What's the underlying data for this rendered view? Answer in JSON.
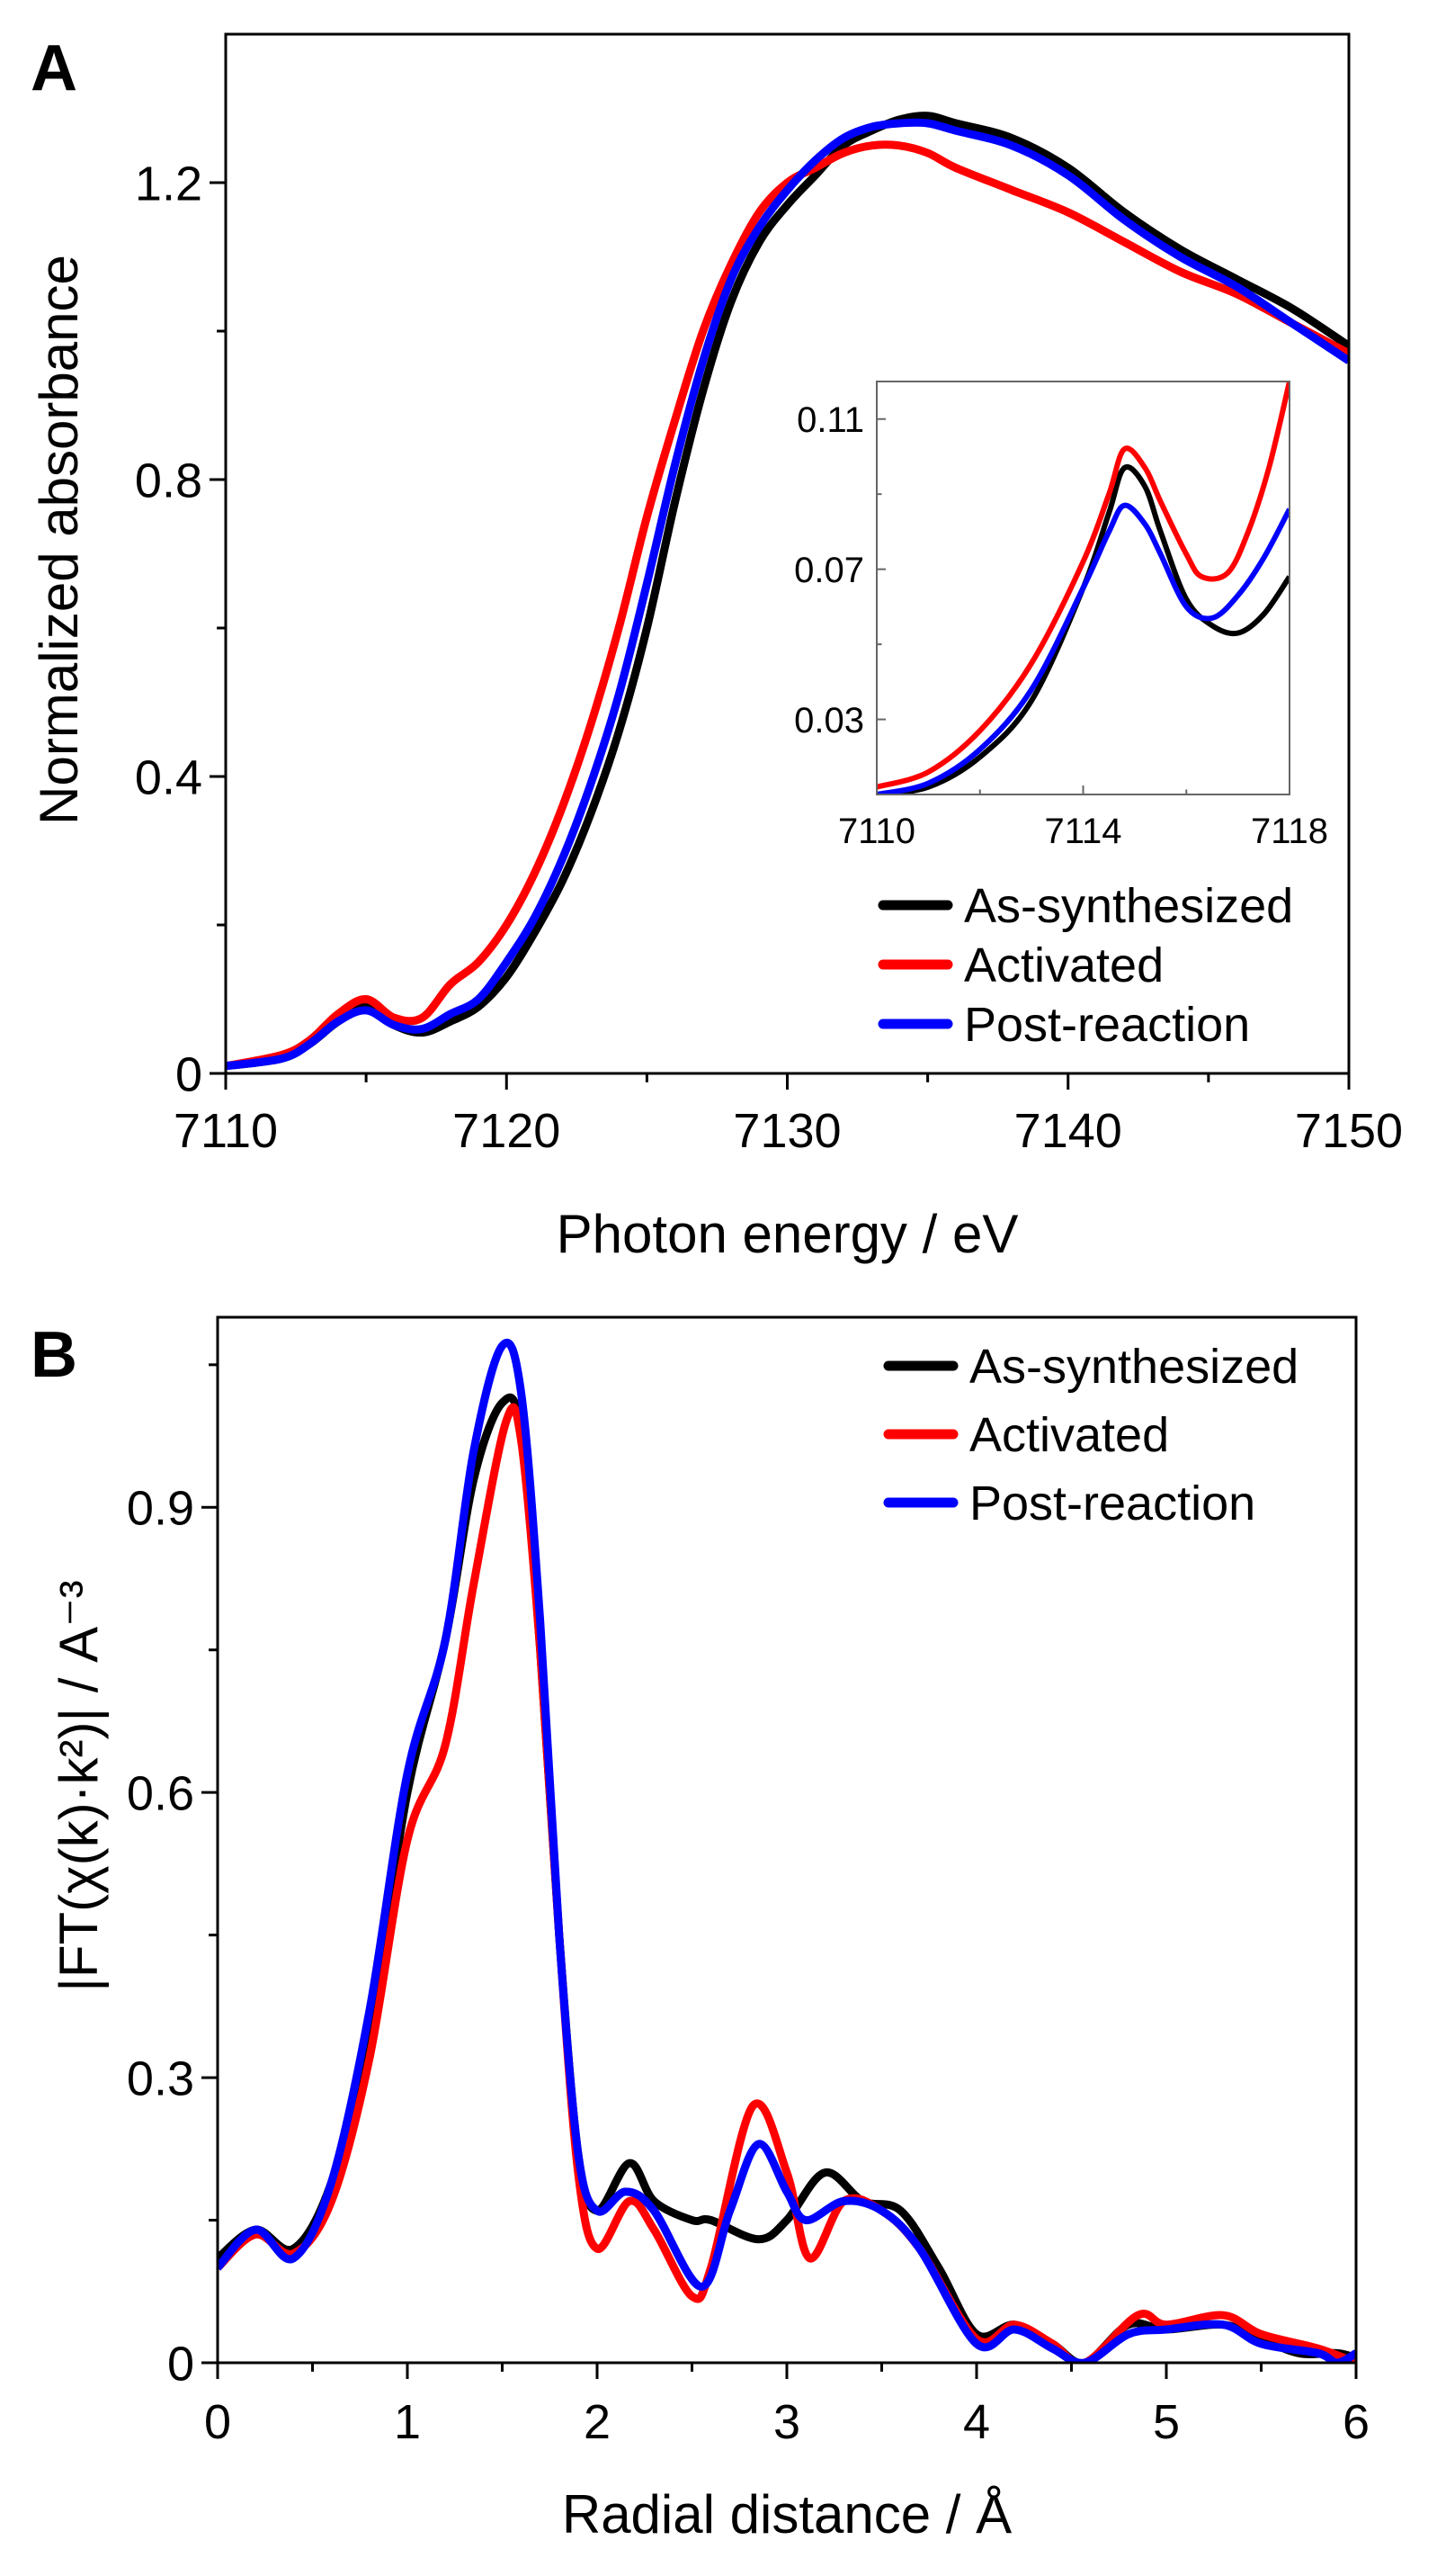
{
  "colors": {
    "As-synthesized": "#000000",
    "Activated": "#ff0000",
    "Post-reaction": "#0000ff"
  },
  "chart_data": [
    {
      "panel": "A",
      "type": "line",
      "title": "",
      "xlabel": "Photon energy / eV",
      "ylabel": "Normalized absorbance",
      "xlim": [
        7110,
        7150
      ],
      "ylim": [
        0,
        1.4
      ],
      "xticks": [
        7110,
        7120,
        7130,
        7140,
        7150
      ],
      "yticks": [
        0,
        0.4,
        0.8,
        1.2
      ],
      "xtick_labels": [
        "7110",
        "7120",
        "7130",
        "7140",
        "7150"
      ],
      "ytick_labels": [
        "0",
        "0.4",
        "0.8",
        "1.2"
      ],
      "legend": "bottom-right",
      "grid": false,
      "series": [
        {
          "name": "As-synthesized",
          "x": [
            7110,
            7112,
            7113,
            7114,
            7115,
            7116,
            7117,
            7118,
            7119,
            7120,
            7121,
            7122,
            7123,
            7124,
            7125,
            7126,
            7127,
            7128,
            7129,
            7130,
            7131,
            7132,
            7133,
            7134,
            7135,
            7136,
            7138,
            7140,
            7142,
            7144,
            7146,
            7148,
            7150
          ],
          "y": [
            0.01,
            0.02,
            0.04,
            0.07,
            0.09,
            0.065,
            0.055,
            0.07,
            0.09,
            0.13,
            0.19,
            0.26,
            0.35,
            0.46,
            0.6,
            0.77,
            0.92,
            1.04,
            1.12,
            1.17,
            1.21,
            1.25,
            1.27,
            1.285,
            1.29,
            1.28,
            1.26,
            1.22,
            1.16,
            1.11,
            1.07,
            1.03,
            0.98
          ]
        },
        {
          "name": "Activated",
          "x": [
            7110,
            7112,
            7113,
            7114,
            7115,
            7116,
            7117,
            7118,
            7119,
            7120,
            7121,
            7122,
            7123,
            7124,
            7125,
            7126,
            7127,
            7128,
            7129,
            7130,
            7131,
            7132,
            7133,
            7134,
            7135,
            7136,
            7138,
            7140,
            7142,
            7144,
            7146,
            7148,
            7150
          ],
          "y": [
            0.01,
            0.025,
            0.045,
            0.08,
            0.1,
            0.075,
            0.075,
            0.12,
            0.15,
            0.2,
            0.27,
            0.36,
            0.47,
            0.6,
            0.75,
            0.88,
            1.0,
            1.09,
            1.16,
            1.2,
            1.22,
            1.24,
            1.25,
            1.25,
            1.24,
            1.22,
            1.19,
            1.16,
            1.12,
            1.08,
            1.05,
            1.01,
            0.97
          ]
        },
        {
          "name": "Post-reaction",
          "x": [
            7110,
            7112,
            7113,
            7114,
            7115,
            7116,
            7117,
            7118,
            7119,
            7120,
            7121,
            7122,
            7123,
            7124,
            7125,
            7126,
            7127,
            7128,
            7129,
            7130,
            7131,
            7132,
            7133,
            7134,
            7135,
            7136,
            7138,
            7140,
            7142,
            7144,
            7146,
            7148,
            7150
          ],
          "y": [
            0.01,
            0.02,
            0.04,
            0.07,
            0.085,
            0.065,
            0.06,
            0.08,
            0.1,
            0.15,
            0.21,
            0.29,
            0.39,
            0.51,
            0.66,
            0.82,
            0.96,
            1.07,
            1.14,
            1.19,
            1.23,
            1.26,
            1.275,
            1.28,
            1.28,
            1.27,
            1.25,
            1.21,
            1.15,
            1.1,
            1.06,
            1.01,
            0.96
          ]
        }
      ],
      "inset": {
        "type": "line",
        "xlim": [
          7110,
          7118
        ],
        "ylim": [
          0.01,
          0.12
        ],
        "xticks": [
          7110,
          7114,
          7118
        ],
        "yticks": [
          0.03,
          0.07,
          0.11
        ],
        "xtick_labels": [
          "7110",
          "7114",
          "7118"
        ],
        "ytick_labels": [
          "0.03",
          "0.07",
          "0.11"
        ],
        "series": [
          {
            "name": "As-synthesized",
            "x": [
              7110,
              7111,
              7112,
              7113,
              7114,
              7114.5,
              7114.8,
              7115.2,
              7115.5,
              7116,
              7116.5,
              7117,
              7117.5,
              7118
            ],
            "y": [
              0.01,
              0.012,
              0.02,
              0.035,
              0.065,
              0.085,
              0.097,
              0.092,
              0.08,
              0.062,
              0.055,
              0.053,
              0.058,
              0.068
            ]
          },
          {
            "name": "Activated",
            "x": [
              7110,
              7111,
              7112,
              7113,
              7114,
              7114.5,
              7114.8,
              7115.2,
              7115.5,
              7116,
              7116.3,
              7116.8,
              7117.2,
              7117.6,
              7118
            ],
            "y": [
              0.012,
              0.016,
              0.027,
              0.045,
              0.072,
              0.09,
              0.102,
              0.097,
              0.088,
              0.074,
              0.068,
              0.069,
              0.08,
              0.097,
              0.12
            ]
          },
          {
            "name": "Post-reaction",
            "x": [
              7110,
              7111,
              7112,
              7113,
              7114,
              7114.5,
              7114.8,
              7115.2,
              7115.5,
              7116,
              7116.5,
              7117,
              7117.5,
              7118
            ],
            "y": [
              0.01,
              0.013,
              0.022,
              0.038,
              0.065,
              0.08,
              0.087,
              0.082,
              0.074,
              0.06,
              0.057,
              0.063,
              0.073,
              0.086
            ]
          }
        ]
      }
    },
    {
      "panel": "B",
      "type": "line",
      "title": "",
      "xlabel": "Radial distance / Å",
      "ylabel": "|FT(χ(k)·k²)| / A⁻³",
      "xlim": [
        0,
        6
      ],
      "ylim": [
        0,
        1.1
      ],
      "xticks": [
        0,
        1,
        2,
        3,
        4,
        5,
        6
      ],
      "yticks": [
        0,
        0.3,
        0.6,
        0.9
      ],
      "xtick_labels": [
        "0",
        "1",
        "2",
        "3",
        "4",
        "5",
        "6"
      ],
      "ytick_labels": [
        "0",
        "0.3",
        "0.6",
        "0.9"
      ],
      "legend": "top-right",
      "grid": false,
      "series": [
        {
          "name": "As-synthesized",
          "x": [
            0,
            0.2,
            0.4,
            0.6,
            0.8,
            1.0,
            1.2,
            1.35,
            1.5,
            1.6,
            1.7,
            1.8,
            1.9,
            2.0,
            2.17,
            2.3,
            2.5,
            2.6,
            2.85,
            3.0,
            3.2,
            3.4,
            3.6,
            3.8,
            4.0,
            4.2,
            4.4,
            4.57,
            4.8,
            5.0,
            5.3,
            5.5,
            5.7,
            5.9,
            6.0
          ],
          "y": [
            0.11,
            0.14,
            0.12,
            0.19,
            0.35,
            0.6,
            0.76,
            0.93,
            1.01,
            0.98,
            0.75,
            0.45,
            0.22,
            0.16,
            0.21,
            0.17,
            0.15,
            0.15,
            0.13,
            0.15,
            0.2,
            0.17,
            0.16,
            0.1,
            0.03,
            0.04,
            0.02,
            0.0,
            0.04,
            0.035,
            0.04,
            0.025,
            0.01,
            0.01,
            0.005
          ]
        },
        {
          "name": "Activated",
          "x": [
            0,
            0.2,
            0.4,
            0.6,
            0.8,
            1.0,
            1.2,
            1.35,
            1.52,
            1.6,
            1.7,
            1.8,
            1.9,
            2.0,
            2.17,
            2.3,
            2.5,
            2.6,
            2.82,
            3.0,
            3.12,
            3.3,
            3.5,
            3.7,
            4.0,
            4.2,
            4.4,
            4.57,
            4.85,
            5.0,
            5.3,
            5.5,
            5.8,
            6.0
          ],
          "y": [
            0.1,
            0.135,
            0.115,
            0.17,
            0.32,
            0.55,
            0.65,
            0.82,
            0.99,
            0.97,
            0.75,
            0.45,
            0.2,
            0.12,
            0.17,
            0.14,
            0.07,
            0.1,
            0.27,
            0.2,
            0.11,
            0.17,
            0.16,
            0.12,
            0.025,
            0.04,
            0.02,
            0.0,
            0.05,
            0.04,
            0.05,
            0.03,
            0.015,
            0.0
          ]
        },
        {
          "name": "Post-reaction",
          "x": [
            0,
            0.2,
            0.4,
            0.6,
            0.8,
            1.0,
            1.2,
            1.35,
            1.5,
            1.6,
            1.7,
            1.8,
            1.9,
            2.0,
            2.15,
            2.3,
            2.55,
            2.7,
            2.85,
            3.0,
            3.1,
            3.3,
            3.5,
            3.7,
            4.0,
            4.2,
            4.4,
            4.57,
            4.8,
            5.0,
            5.3,
            5.5,
            5.8,
            5.9,
            6.0
          ],
          "y": [
            0.1,
            0.14,
            0.11,
            0.19,
            0.37,
            0.62,
            0.76,
            0.96,
            1.07,
            1.02,
            0.78,
            0.45,
            0.22,
            0.16,
            0.18,
            0.16,
            0.08,
            0.16,
            0.23,
            0.18,
            0.15,
            0.17,
            0.16,
            0.12,
            0.02,
            0.035,
            0.015,
            0.0,
            0.03,
            0.035,
            0.04,
            0.02,
            0.01,
            0.0,
            0.01
          ]
        }
      ]
    }
  ],
  "panels": {
    "A": {
      "label": "A"
    },
    "B": {
      "label": "B"
    }
  }
}
